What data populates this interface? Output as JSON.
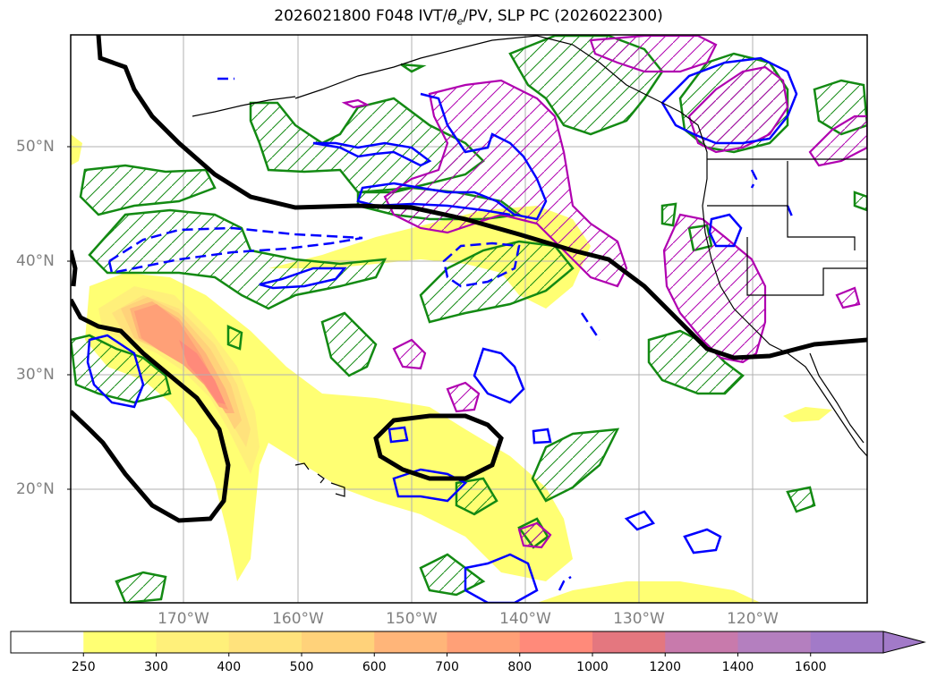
{
  "title_prefix": "2026021800 F048 IVT/",
  "title_theta": "θ",
  "title_theta_sub": "e",
  "title_suffix": "/PV, SLP PC (2026022300)",
  "latitude_labels": [
    "50°N",
    "40°N",
    "30°N",
    "20°N"
  ],
  "longitude_labels": [
    "170°W",
    "160°W",
    "150°W",
    "140°W",
    "130°W",
    "120°W"
  ],
  "colorbar": {
    "ticks": [
      "250",
      "300",
      "400",
      "500",
      "600",
      "700",
      "800",
      "1000",
      "1200",
      "1400",
      "1600"
    ],
    "colors": [
      "#ffffff",
      "#ffff73",
      "#fff07a",
      "#ffe27c",
      "#ffd27a",
      "#ffb579",
      "#ffa077",
      "#ff8a7a",
      "#e4777f",
      "#c87aac",
      "#b47fbf",
      "#a27ac8"
    ],
    "extend": "max"
  },
  "colors": {
    "slp": "#000000",
    "thetae_dash": "#0000ff",
    "pv": "#b000b0",
    "green": "#138a13",
    "grid": "#b0b0b0",
    "label": "#808080"
  }
}
